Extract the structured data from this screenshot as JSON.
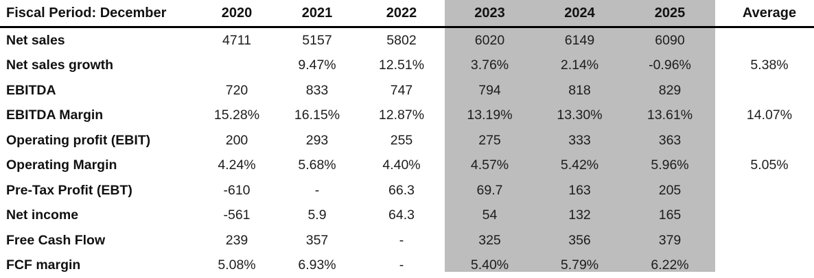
{
  "chart_data": {
    "type": "table",
    "title": "Fiscal Period: December",
    "columns": [
      "2020",
      "2021",
      "2022",
      "2023",
      "2024",
      "2025",
      "Average"
    ],
    "highlighted_columns": [
      "2023",
      "2024",
      "2025"
    ],
    "rows": [
      {
        "label": "Net sales",
        "values": [
          "4711",
          "5157",
          "5802",
          "6020",
          "6149",
          "6090",
          ""
        ]
      },
      {
        "label": "Net sales growth",
        "values": [
          "",
          "9.47%",
          "12.51%",
          "3.76%",
          "2.14%",
          "-0.96%",
          "5.38%"
        ]
      },
      {
        "label": "EBITDA",
        "values": [
          "720",
          "833",
          "747",
          "794",
          "818",
          "829",
          ""
        ]
      },
      {
        "label": "EBITDA Margin",
        "values": [
          "15.28%",
          "16.15%",
          "12.87%",
          "13.19%",
          "13.30%",
          "13.61%",
          "14.07%"
        ]
      },
      {
        "label": "Operating profit (EBIT)",
        "values": [
          "200",
          "293",
          "255",
          "275",
          "333",
          "363",
          ""
        ]
      },
      {
        "label": "Operating Margin",
        "values": [
          "4.24%",
          "5.68%",
          "4.40%",
          "4.57%",
          "5.42%",
          "5.96%",
          "5.05%"
        ]
      },
      {
        "label": "Pre-Tax Profit (EBT)",
        "values": [
          "-610",
          "-",
          "66.3",
          "69.7",
          "163",
          "205",
          ""
        ]
      },
      {
        "label": "Net income",
        "values": [
          "-561",
          "5.9",
          "64.3",
          "54",
          "132",
          "165",
          ""
        ]
      },
      {
        "label": "Free Cash Flow",
        "values": [
          "239",
          "357",
          "-",
          "325",
          "356",
          "379",
          ""
        ]
      },
      {
        "label": "FCF margin",
        "values": [
          "5.08%",
          "6.93%",
          "-",
          "5.40%",
          "5.79%",
          "6.22%",
          ""
        ]
      }
    ],
    "layout_hints": {
      "grid": false,
      "header_rule": true,
      "highlight_band_columns": "2023-2025"
    }
  },
  "colors": {
    "highlight_bg": "#bdbdbd",
    "header_rule": "#000000",
    "text": "#1c1c1c",
    "background": "#ffffff"
  }
}
